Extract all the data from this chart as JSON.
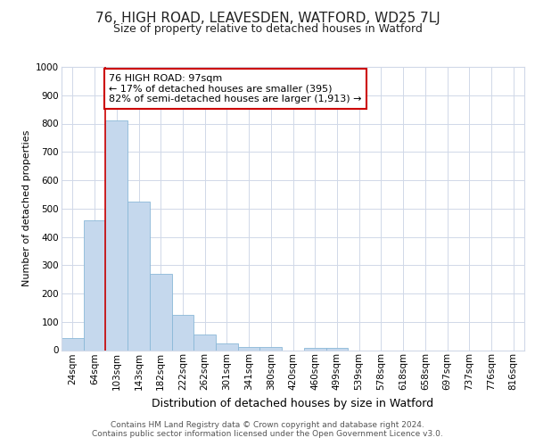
{
  "title": "76, HIGH ROAD, LEAVESDEN, WATFORD, WD25 7LJ",
  "subtitle": "Size of property relative to detached houses in Watford",
  "xlabel": "Distribution of detached houses by size in Watford",
  "ylabel": "Number of detached properties",
  "bar_color": "#c5d8ed",
  "bar_edge_color": "#8ab8d8",
  "annotation_line_color": "#cc0000",
  "annotation_box_edge_color": "#cc0000",
  "annotation_text": "76 HIGH ROAD: 97sqm\n← 17% of detached houses are smaller (395)\n82% of semi-detached houses are larger (1,913) →",
  "property_bin_index": 2,
  "categories": [
    "24sqm",
    "64sqm",
    "103sqm",
    "143sqm",
    "182sqm",
    "222sqm",
    "262sqm",
    "301sqm",
    "341sqm",
    "380sqm",
    "420sqm",
    "460sqm",
    "499sqm",
    "539sqm",
    "578sqm",
    "618sqm",
    "658sqm",
    "697sqm",
    "737sqm",
    "776sqm",
    "816sqm"
  ],
  "values": [
    43,
    457,
    810,
    524,
    270,
    125,
    55,
    25,
    12,
    12,
    0,
    8,
    8,
    0,
    0,
    0,
    0,
    0,
    0,
    0,
    0
  ],
  "ylim": [
    0,
    1000
  ],
  "yticks": [
    0,
    100,
    200,
    300,
    400,
    500,
    600,
    700,
    800,
    900,
    1000
  ],
  "footer_text": "Contains HM Land Registry data © Crown copyright and database right 2024.\nContains public sector information licensed under the Open Government Licence v3.0.",
  "background_color": "#ffffff",
  "grid_color": "#d0d8e8",
  "title_fontsize": 11,
  "subtitle_fontsize": 9,
  "ylabel_fontsize": 8,
  "xlabel_fontsize": 9,
  "tick_fontsize": 7.5,
  "annotation_fontsize": 8,
  "footer_fontsize": 6.5
}
